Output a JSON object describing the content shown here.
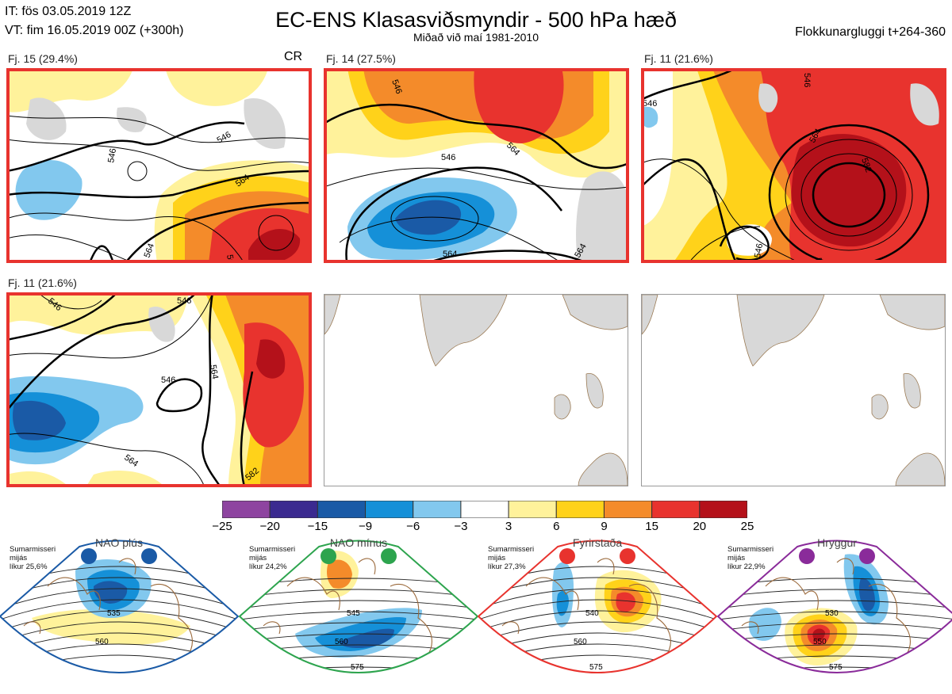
{
  "header": {
    "it_line": "IT: fös 03.05.2019 12Z",
    "vt_line": "VT: fim 16.05.2019 00Z  (+300h)",
    "title": "EC-ENS Klasasviðsmyndir - 500 hPa hæð",
    "subtitle": "Miðað við maí 1981-2010",
    "window_label": "Flokkunargluggi t+264-360"
  },
  "panels": [
    {
      "label": "Fj. 15 (29.4%)",
      "tag": "CR",
      "contours": [
        "546",
        "546",
        "564",
        "564",
        "564"
      ]
    },
    {
      "label": "Fj. 14 (27.5%)",
      "contours": [
        "546",
        "546",
        "564",
        "564",
        "564"
      ]
    },
    {
      "label": "Fj. 11 (21.6%)",
      "contours": [
        "546",
        "564",
        "582",
        "546",
        "564",
        "546"
      ]
    },
    {
      "label": "Fj. 11 (21.6%)",
      "contours": [
        "546",
        "546",
        "546",
        "564",
        "564",
        "582"
      ]
    }
  ],
  "colorbar": {
    "ticks": [
      "−25",
      "−20",
      "−15",
      "−9",
      "−6",
      "−3",
      "3",
      "6",
      "9",
      "15",
      "20",
      "25"
    ],
    "colors": [
      "#8e44a0",
      "#3b2a90",
      "#1a5aa6",
      "#1590d8",
      "#82c8ee",
      "#ffffff",
      "#fff29b",
      "#ffd21a",
      "#f48b2a",
      "#e8332e",
      "#b4111a"
    ]
  },
  "regimes": [
    {
      "name": "NAO plús",
      "season": "Sumarmisseri",
      "metric": "mijás",
      "likelihood": "líkur 25,6%",
      "color": "#1a5aa6",
      "contours": [
        "535",
        "560"
      ]
    },
    {
      "name": "NAO mínus",
      "season": "Sumarmisseri",
      "metric": "mijás",
      "likelihood": "líkur 24,2%",
      "color": "#2da44e",
      "contours": [
        "545",
        "560",
        "575"
      ]
    },
    {
      "name": "Fyrirstaða",
      "season": "Sumarmisseri",
      "metric": "mijás",
      "likelihood": "líkur 27,3%",
      "color": "#e8332e",
      "contours": [
        "540",
        "560",
        "575"
      ]
    },
    {
      "name": "Hryggur",
      "season": "Sumarmisseri",
      "metric": "mijás",
      "likelihood": "líkur 22,9%",
      "color": "#8a2b9a",
      "contours": [
        "530",
        "550",
        "575"
      ]
    }
  ]
}
